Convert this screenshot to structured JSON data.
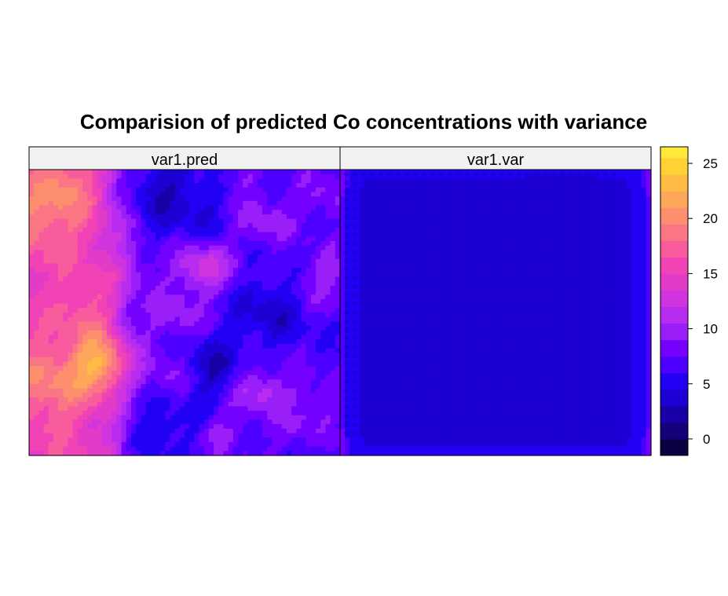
{
  "chart_data": {
    "type": "heatmap",
    "title": "Comparision of predicted Co concentrations with variance",
    "panels": [
      {
        "name": "var1.pred"
      },
      {
        "name": "var1.var"
      }
    ],
    "colorbar": {
      "ticks": [
        0,
        5,
        10,
        15,
        20,
        25
      ],
      "range": [
        -1.5,
        26.5
      ],
      "levels": [
        -1.5,
        0,
        1.5,
        3,
        4.5,
        6,
        7.5,
        9,
        10.5,
        12,
        13.5,
        15,
        16.5,
        18,
        19.5,
        21,
        22.5,
        24,
        25.5,
        26.5
      ],
      "colors": [
        "#0D0042",
        "#140079",
        "#1800A6",
        "#1C00D4",
        "#2200F3",
        "#4D00FF",
        "#7400FF",
        "#9A1EF8",
        "#B72CF0",
        "#D034DF",
        "#E13BC8",
        "#F143B5",
        "#F85C9C",
        "#FB7685",
        "#FD8F6F",
        "#FEA65A",
        "#FFBC45",
        "#FFD132",
        "#FFE838",
        "#FFFF5A"
      ]
    },
    "pred_blobs": [
      {
        "x": 0.24,
        "y": 0.68,
        "s": 0.07,
        "a": 8.0
      },
      {
        "x": 0.05,
        "y": 0.15,
        "s": 0.1,
        "a": 4.0
      },
      {
        "x": 0.12,
        "y": 0.04,
        "s": 0.06,
        "a": 3.0
      },
      {
        "x": 0.42,
        "y": 0.06,
        "s": 0.09,
        "a": -3.0
      },
      {
        "x": 0.55,
        "y": 0.2,
        "s": 0.12,
        "a": -2.0
      },
      {
        "x": 0.56,
        "y": 0.34,
        "s": 0.07,
        "a": 7.0
      },
      {
        "x": 0.74,
        "y": 0.18,
        "s": 0.07,
        "a": 3.5
      },
      {
        "x": 0.94,
        "y": 0.1,
        "s": 0.06,
        "a": 2.5
      },
      {
        "x": 0.95,
        "y": 0.38,
        "s": 0.07,
        "a": 3.0
      },
      {
        "x": 0.77,
        "y": 0.49,
        "s": 0.09,
        "a": -3.0
      },
      {
        "x": 0.58,
        "y": 0.7,
        "s": 0.07,
        "a": -4.0
      },
      {
        "x": 0.47,
        "y": 0.52,
        "s": 0.06,
        "a": 3.0
      },
      {
        "x": 0.74,
        "y": 0.77,
        "s": 0.06,
        "a": 4.5
      },
      {
        "x": 0.92,
        "y": 0.8,
        "s": 0.06,
        "a": 2.5
      },
      {
        "x": 0.42,
        "y": 0.9,
        "s": 0.09,
        "a": -2.5
      },
      {
        "x": 0.62,
        "y": 0.92,
        "s": 0.06,
        "a": 2.5
      },
      {
        "x": 0.46,
        "y": 0.73,
        "s": 0.06,
        "a": 3.0
      },
      {
        "x": 0.33,
        "y": 0.35,
        "s": 0.06,
        "a": 2.0
      },
      {
        "x": 0.06,
        "y": 0.75,
        "s": 0.1,
        "a": 4.0
      },
      {
        "x": 0.2,
        "y": 0.5,
        "s": 0.07,
        "a": 2.5
      },
      {
        "x": 0.85,
        "y": 0.92,
        "s": 0.05,
        "a": 2.0
      },
      {
        "x": 0.68,
        "y": 0.03,
        "s": 0.05,
        "a": 2.0
      }
    ],
    "var_blobs": [
      {
        "x": 0.42,
        "y": 0.35,
        "s": 0.05,
        "a": -0.7
      },
      {
        "x": 0.55,
        "y": 0.6,
        "s": 0.06,
        "a": -0.6
      },
      {
        "x": 0.72,
        "y": 0.18,
        "s": 0.07,
        "a": -0.6
      },
      {
        "x": 0.78,
        "y": 0.35,
        "s": 0.05,
        "a": -0.5
      },
      {
        "x": 0.28,
        "y": 0.45,
        "s": 0.05,
        "a": -0.4
      }
    ]
  }
}
